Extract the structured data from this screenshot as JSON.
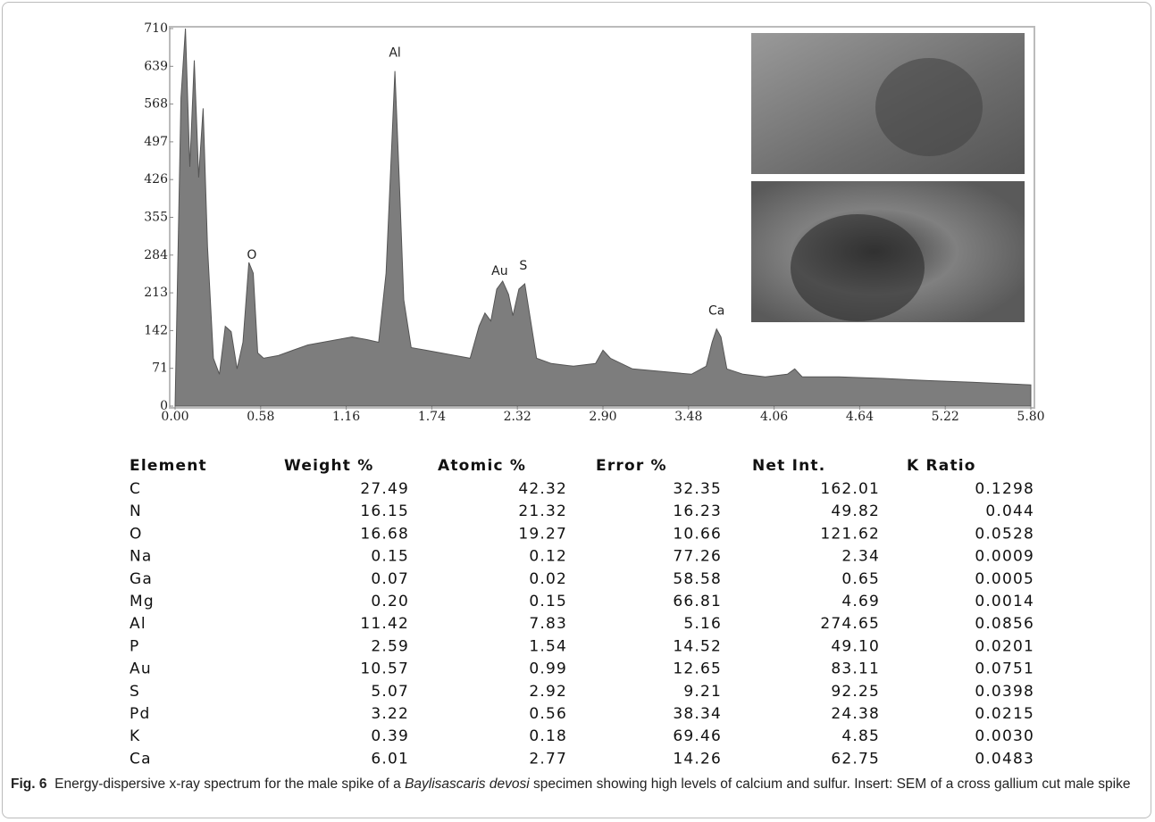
{
  "chart_data": {
    "type": "area",
    "color": "#7d7d7d",
    "x": [
      0.0,
      0.04,
      0.07,
      0.1,
      0.13,
      0.16,
      0.19,
      0.22,
      0.26,
      0.3,
      0.34,
      0.38,
      0.42,
      0.46,
      0.5,
      0.53,
      0.56,
      0.6,
      0.7,
      0.8,
      0.9,
      1.0,
      1.1,
      1.2,
      1.3,
      1.38,
      1.43,
      1.47,
      1.49,
      1.52,
      1.55,
      1.6,
      1.7,
      1.8,
      1.9,
      2.0,
      2.06,
      2.1,
      2.14,
      2.18,
      2.22,
      2.26,
      2.29,
      2.33,
      2.37,
      2.41,
      2.45,
      2.55,
      2.7,
      2.85,
      2.9,
      2.95,
      3.1,
      3.3,
      3.5,
      3.6,
      3.64,
      3.67,
      3.7,
      3.74,
      3.85,
      4.0,
      4.15,
      4.2,
      4.25,
      4.5,
      4.8,
      5.1,
      5.4,
      5.8
    ],
    "values": [
      0,
      580,
      710,
      450,
      650,
      430,
      560,
      300,
      90,
      60,
      150,
      140,
      70,
      120,
      270,
      250,
      100,
      90,
      95,
      105,
      115,
      120,
      125,
      130,
      125,
      120,
      250,
      500,
      630,
      420,
      200,
      110,
      105,
      100,
      95,
      90,
      150,
      175,
      160,
      220,
      235,
      210,
      170,
      220,
      230,
      160,
      90,
      80,
      75,
      80,
      105,
      90,
      70,
      65,
      60,
      75,
      120,
      145,
      130,
      70,
      60,
      55,
      60,
      70,
      55,
      55,
      52,
      48,
      45,
      40
    ],
    "xlim": [
      0,
      5.8
    ],
    "ylim": [
      0,
      710
    ],
    "xticks": [
      {
        "value": 0,
        "label": "0.00"
      },
      {
        "value": 0.58,
        "label": "0.58"
      },
      {
        "value": 1.16,
        "label": "1.16"
      },
      {
        "value": 1.74,
        "label": "1.74"
      },
      {
        "value": 2.32,
        "label": "2.32"
      },
      {
        "value": 2.9,
        "label": "2.90"
      },
      {
        "value": 3.48,
        "label": "3.48"
      },
      {
        "value": 4.06,
        "label": "4.06"
      },
      {
        "value": 4.64,
        "label": "4.64"
      },
      {
        "value": 5.22,
        "label": "5.22"
      },
      {
        "value": 5.8,
        "label": "5.80"
      }
    ],
    "yticks": [
      0,
      71,
      142,
      213,
      284,
      355,
      426,
      497,
      568,
      639,
      710
    ],
    "annotations": [
      {
        "label": "O",
        "x": 0.52
      },
      {
        "label": "Al",
        "x": 1.49
      },
      {
        "label": "Au",
        "x": 2.2
      },
      {
        "label": "S",
        "x": 2.36
      },
      {
        "label": "Ca",
        "x": 3.67
      }
    ]
  },
  "table": {
    "header": [
      "Element",
      "Weight %",
      "Atomic %",
      "Error %",
      "Net Int.",
      "K Ratio"
    ],
    "rows": [
      [
        "C",
        "27.49",
        "42.32",
        "32.35",
        "162.01",
        "0.1298"
      ],
      [
        "N",
        "16.15",
        "21.32",
        "16.23",
        "49.82",
        "0.044"
      ],
      [
        "O",
        "16.68",
        "19.27",
        "10.66",
        "121.62",
        "0.0528"
      ],
      [
        "Na",
        "0.15",
        "0.12",
        "77.26",
        "2.34",
        "0.0009"
      ],
      [
        "Ga",
        "0.07",
        "0.02",
        "58.58",
        "0.65",
        "0.0005"
      ],
      [
        "Mg",
        "0.20",
        "0.15",
        "66.81",
        "4.69",
        "0.0014"
      ],
      [
        "Al",
        "11.42",
        "7.83",
        "5.16",
        "274.65",
        "0.0856"
      ],
      [
        "P",
        "2.59",
        "1.54",
        "14.52",
        "49.10",
        "0.0201"
      ],
      [
        "Au",
        "10.57",
        "0.99",
        "12.65",
        "83.11",
        "0.0751"
      ],
      [
        "S",
        "5.07",
        "2.92",
        "9.21",
        "92.25",
        "0.0398"
      ],
      [
        "Pd",
        "3.22",
        "0.56",
        "38.34",
        "24.38",
        "0.0215"
      ],
      [
        "K",
        "0.39",
        "0.18",
        "69.46",
        "4.85",
        "0.0030"
      ],
      [
        "Ca",
        "6.01",
        "2.77",
        "14.26",
        "62.75",
        "0.0483"
      ]
    ]
  },
  "caption": {
    "label": "Fig. 6",
    "text_before": "Energy-dispersive x-ray spectrum for the male spike of a ",
    "italic": "Baylisascaris devosi",
    "text_after": " specimen showing high levels of calcium and sulfur. Insert: SEM of a cross gallium cut male spike"
  }
}
